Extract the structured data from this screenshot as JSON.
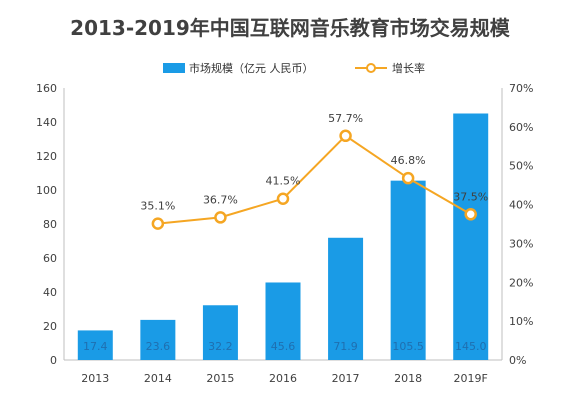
{
  "chart_data": {
    "type": "bar+line",
    "title": "2013-2019年中国互联网音乐教育市场交易规模",
    "categories": [
      "2013",
      "2014",
      "2015",
      "2016",
      "2017",
      "2018",
      "2019F"
    ],
    "series": [
      {
        "name": "市场规模（亿元 人民币）",
        "type": "bar",
        "axis": "left",
        "color": "#1a9be6",
        "values": [
          17.4,
          23.6,
          32.2,
          45.6,
          71.9,
          105.5,
          145.0
        ],
        "labels": [
          "17.4",
          "23.6",
          "32.2",
          "45.6",
          "71.9",
          "105.5",
          "145.0"
        ]
      },
      {
        "name": "增长率",
        "type": "line",
        "axis": "right",
        "color": "#f5a623",
        "values": [
          null,
          35.1,
          36.7,
          41.5,
          57.7,
          46.8,
          37.5
        ],
        "labels": [
          "",
          "35.1%",
          "36.7%",
          "41.5%",
          "57.7%",
          "46.8%",
          "37.5%"
        ]
      }
    ],
    "y_left": {
      "min": 0,
      "max": 160,
      "ticks": [
        "0",
        "20",
        "40",
        "60",
        "80",
        "100",
        "120",
        "140",
        "160"
      ]
    },
    "y_right": {
      "min": 0,
      "max": 70,
      "ticks": [
        "0%",
        "10%",
        "20%",
        "30%",
        "40%",
        "50%",
        "60%",
        "70%"
      ]
    },
    "legend": {
      "position": "top"
    },
    "grid": false
  }
}
